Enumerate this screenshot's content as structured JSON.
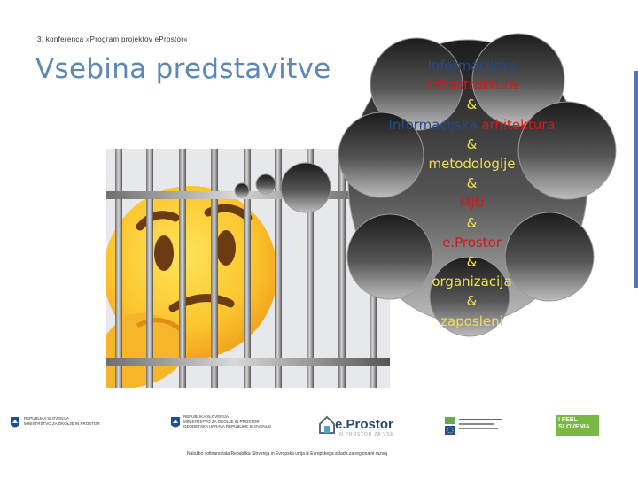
{
  "header": {
    "conference": "3. konferenca »Program projektov eProstor«",
    "title": "Vsebina predstavitve"
  },
  "thought": {
    "lines": [
      {
        "text": "Informacijska",
        "color": "#244a8a"
      },
      {
        "text": "infrastruktura",
        "color": "#d21a1a"
      },
      {
        "text": "&",
        "color": "#ece050"
      },
      {
        "text": "Informacijska arhitektura",
        "color": "#244a8a",
        "split_word": "arhitektura",
        "split_color": "#d21a1a"
      },
      {
        "text": "&",
        "color": "#ece050"
      },
      {
        "text": "metodologije",
        "color": "#ece050"
      },
      {
        "text": "&",
        "color": "#ece050"
      },
      {
        "text": "MJU",
        "color": "#d21a1a"
      },
      {
        "text": "&",
        "color": "#ece050"
      },
      {
        "text": "e.Prostor",
        "color": "#d21a1a"
      },
      {
        "text": "&",
        "color": "#ece050"
      },
      {
        "text": "organizacija",
        "color": "#ece050"
      },
      {
        "text": "&",
        "color": "#ece050"
      },
      {
        "text": "zaposleni",
        "color": "#ece050"
      }
    ]
  },
  "logos": {
    "mop_line1": "REPUBLIKA SLOVENIJA",
    "mop_line2": "MINISTRSTVO ZA OKOLJE IN PROSTOR",
    "gu_line1": "REPUBLIKA SLOVENIJA",
    "gu_line2": "MINISTRSTVO ZA OKOLJE IN PROSTOR",
    "gu_line3": "GEODETSKA UPRAVA REPUBLIKE SLOVENIJE",
    "eprostor": "e.Prostor",
    "eprostor_sub": "IN PROSTOR ZA VSE",
    "ifeel_line1": "I FEEL",
    "ifeel_line2": "SLOVENIA"
  },
  "footnote": "Naložbo sofinancirata Republika Slovenija in Evropska unija iz Evropskega sklada za regionalni razvoj."
}
